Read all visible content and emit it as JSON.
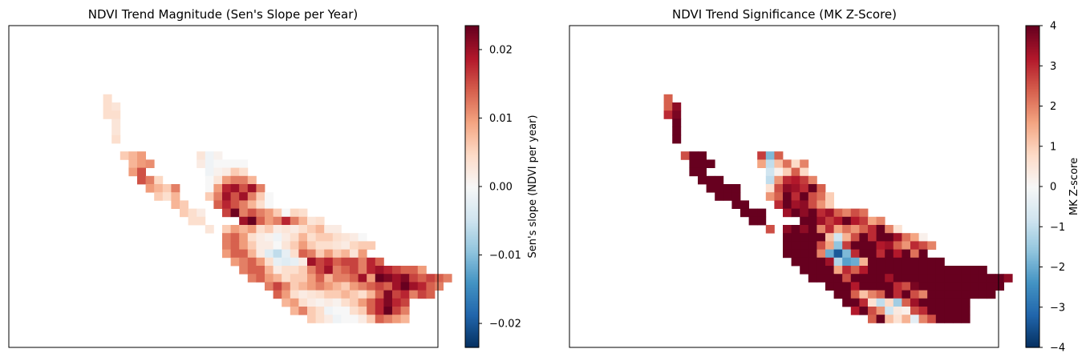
{
  "chart_data": [
    {
      "type": "heatmap",
      "title": "NDVI Trend Magnitude (Sen's Slope per Year)",
      "colorbar": {
        "label": "Sen's slope (NDVI per year)",
        "range": [
          -0.0235,
          0.0235
        ],
        "ticks": [
          -0.02,
          -0.01,
          0.0,
          0.01,
          0.02
        ],
        "tick_labels": [
          "−0.02",
          "−0.01",
          "0.00",
          "0.01",
          "0.02"
        ],
        "colormap": "RdBu_r"
      },
      "grid": false,
      "axes_ticks": false,
      "cell_values_encoding": "rows of cells; each row: [start_col, [values...]], value = Sen's slope",
      "rows": [
        [
          0,
          []
        ],
        [
          0,
          []
        ],
        [
          0,
          []
        ],
        [
          0,
          []
        ],
        [
          6,
          [
            0.004
          ]
        ],
        [
          6,
          [
            0.004,
            0.003
          ]
        ],
        [
          6,
          [
            0.004,
            0.004
          ]
        ],
        [
          7,
          [
            0.003
          ]
        ],
        [
          7,
          [
            0.003
          ]
        ],
        [
          7,
          [
            0.004
          ]
        ],
        [
          0,
          []
        ],
        [
          8,
          [
            0.006,
            0.008,
            0.01
          ],
          17,
          [
            0.003,
            -0.001,
            0.001
          ]
        ],
        [
          9,
          [
            0.008,
            0.01,
            0.011
          ],
          17,
          [
            0.002,
            -0.001,
            0.0,
            0.0,
            0.0,
            0.0
          ]
        ],
        [
          9,
          [
            0.01,
            0.015
          ],
          18,
          [
            -0.001,
            0.001,
            0.002,
            0.006,
            0.004
          ]
        ],
        [
          10,
          [
            0.015,
            0.012,
            0.005
          ],
          18,
          [
            0.0,
            0.003,
            0.01,
            0.012,
            0.012,
            0.008
          ]
        ],
        [
          11,
          [
            0.01,
            0.008,
            0.006,
            0.012
          ],
          18,
          [
            0.0,
            0.01,
            0.018,
            0.02,
            0.015,
            0.02,
            0.012
          ]
        ],
        [
          12,
          [
            0.006,
            0.004,
            0.008
          ],
          18,
          [
            0.006,
            0.012,
            0.02,
            0.015,
            0.02,
            0.012,
            0.006,
            0.0
          ]
        ],
        [
          14,
          [
            0.008,
            0.006
          ],
          19,
          [
            0.014,
            0.018,
            0.015,
            0.012,
            0.008,
            0.004,
            0.0
          ]
        ],
        [
          15,
          [
            0.006,
            0.004,
            0.002
          ],
          20,
          [
            0.016,
            0.023,
            0.012,
            0.015,
            0.012,
            0.01,
            0.006,
            0.0,
            0.005,
            0.004
          ]
        ],
        [
          16,
          [
            0.004,
            0.004
          ],
          22,
          [
            0.02,
            0.024,
            0.014,
            0.01,
            0.012,
            0.018,
            0.012,
            0.008,
            0.003,
            0.004
          ]
        ],
        [
          18,
          [
            0.003
          ],
          20,
          [
            0.006,
            0.01,
            0.008,
            0.01,
            0.004,
            0.006,
            0.002,
            0.003,
            0.002,
            0.004,
            0.006,
            0.008,
            0.002,
            0.002
          ]
        ],
        [
          20,
          [
            0.012,
            0.014,
            0.01,
            0.004,
            0.002,
            0.001,
            -0.001,
            0.002,
            0.004,
            0.008,
            0.004,
            0.006,
            0.006,
            0.004,
            0.003,
            0.002,
            0.0
          ]
        ],
        [
          20,
          [
            0.012,
            0.014,
            0.01,
            0.006,
            0.002,
            0.002,
            0.0,
            0.003,
            0.006,
            0.01,
            0.006,
            0.004,
            0.004,
            0.003,
            0.002,
            0.005,
            0.006,
            0.006
          ]
        ],
        [
          20,
          [
            0.01,
            0.014,
            0.014,
            0.008,
            0.002,
            -0.003,
            -0.006,
            -0.002,
            0.004,
            0.014,
            0.012,
            0.006,
            0.01,
            0.006,
            0.008,
            0.003,
            0.01
          ]
        ],
        [
          21,
          [
            0.01,
            0.012,
            0.014,
            0.01,
            0.004,
            -0.002,
            -0.003,
            -0.002,
            0.002,
            0.02,
            0.016,
            0.018,
            0.014,
            0.016,
            0.016,
            0.012,
            0.018,
            0.014
          ]
        ],
        [
          22,
          [
            0.012,
            0.014,
            0.014,
            0.008,
            0.002,
            0.004,
            0.004,
            0.006,
            0.012,
            0.016,
            0.02,
            0.012,
            0.014,
            0.016,
            0.012,
            0.018,
            0.02,
            0.018,
            0.016,
            0.014,
            0.014,
            0.01
          ]
        ],
        [
          23,
          [
            0.012,
            0.014,
            0.01,
            0.008,
            0.004,
            0.006,
            0.006,
            0.01,
            0.014,
            0.008,
            0.012,
            0.012,
            0.014,
            0.02,
            0.01,
            0.024,
            0.022,
            0.02,
            0.022,
            0.016,
            0.014,
            0.016,
            0.014,
            0.012
          ]
        ],
        [
          25,
          [
            0.012,
            0.016,
            0.012,
            0.006,
            0.008,
            0.01,
            0.012,
            0.01,
            0.008,
            0.006,
            0.01,
            0.012,
            0.014,
            0.016,
            0.014,
            0.02,
            0.024,
            0.02,
            0.018,
            0.014,
            0.012
          ]
        ],
        [
          26,
          [
            0.014,
            0.01,
            0.004,
            0.002,
            0.003,
            0.004,
            0.006,
            0.006,
            0.008,
            0.006,
            0.004,
            0.008,
            0.014,
            0.022,
            0.016,
            0.018,
            0.012,
            0.016,
            0.014
          ]
        ],
        [
          27,
          [
            0.008,
            0.01,
            0.004,
            0.002,
            0.001,
            0.002,
            0.001,
            0.004,
            0.006,
            0.01,
            0.014,
            0.018,
            0.022,
            0.018,
            0.016
          ]
        ],
        [
          28,
          [
            0.008,
            0.012,
            0.006,
            0.004,
            -0.001,
            0.0,
            0.0,
            0.004,
            0.006,
            0.014,
            0.018,
            0.024,
            0.016,
            0.012
          ]
        ],
        [
          30,
          [
            0.006,
            0.004,
            0.002,
            -0.001,
            0.0,
            0.0,
            0.002,
            0.006,
            0.014,
            0.012,
            0.01,
            0.008
          ]
        ]
      ]
    },
    {
      "type": "heatmap",
      "title": "NDVI Trend Significance (MK Z-Score)",
      "colorbar": {
        "label": "MK Z-score",
        "range": [
          -4,
          4
        ],
        "ticks": [
          -4,
          -3,
          -2,
          -1,
          0,
          1,
          2,
          3,
          4
        ],
        "tick_labels": [
          "−4",
          "−3",
          "−2",
          "−1",
          "0",
          "1",
          "2",
          "3",
          "4"
        ],
        "colormap": "RdBu_r"
      },
      "grid": false,
      "axes_ticks": false,
      "cell_values_encoding": "rows of cells; each row: [start_col, [values...]], value = MK Z-score",
      "rows": [
        [
          0,
          []
        ],
        [
          0,
          []
        ],
        [
          0,
          []
        ],
        [
          0,
          []
        ],
        [
          6,
          [
            2.4
          ]
        ],
        [
          6,
          [
            2.4,
            3.6
          ]
        ],
        [
          6,
          [
            3.0,
            3.8
          ]
        ],
        [
          7,
          [
            4.0
          ]
        ],
        [
          7,
          [
            4.0
          ]
        ],
        [
          7,
          [
            4.0
          ]
        ],
        [
          0,
          []
        ],
        [
          8,
          [
            2.6,
            4.0,
            4.0
          ],
          17,
          [
            2.8,
            -1.8,
            2.4
          ]
        ],
        [
          9,
          [
            4.0,
            4.0,
            4.0
          ],
          17,
          [
            1.6,
            -1.0,
            1.2,
            2.2,
            0.8,
            2.0
          ]
        ],
        [
          9,
          [
            4.0,
            4.0
          ],
          18,
          [
            -0.8,
            0.2,
            1.0,
            2.4,
            0.8
          ]
        ],
        [
          10,
          [
            4.0,
            4.0,
            4.0
          ],
          18,
          [
            -1.0,
            1.8,
            3.0,
            3.2,
            2.8,
            2.0
          ]
        ],
        [
          11,
          [
            4.0,
            4.0,
            4.0,
            4.0
          ],
          18,
          [
            0.6,
            2.6,
            3.6,
            3.4,
            3.0,
            4.0,
            2.4
          ]
        ],
        [
          12,
          [
            4.0,
            4.0,
            4.0
          ],
          18,
          [
            1.8,
            2.4,
            4.0,
            3.0,
            4.0,
            2.6,
            2.2,
            1.0
          ]
        ],
        [
          14,
          [
            4.0,
            4.0
          ],
          19,
          [
            3.0,
            4.0,
            3.4,
            3.6,
            2.6,
            1.8,
            1.0
          ]
        ],
        [
          15,
          [
            4.0,
            4.0,
            4.0
          ],
          20,
          [
            3.4,
            4.0,
            3.6,
            4.0,
            3.0,
            3.4,
            2.4,
            2.0,
            2.6,
            2.2
          ]
        ],
        [
          16,
          [
            4.0,
            4.0
          ],
          22,
          [
            4.0,
            4.0,
            3.4,
            2.8,
            3.2,
            4.0,
            3.2,
            2.8,
            1.6,
            2.0
          ]
        ],
        [
          18,
          [
            2.6
          ],
          20,
          [
            3.6,
            4.0,
            3.6,
            4.0,
            2.0,
            3.0,
            1.6,
            2.2,
            1.8,
            2.4,
            3.0,
            4.0,
            2.0,
            0.6
          ]
        ],
        [
          20,
          [
            4.0,
            4.0,
            4.0,
            4.0,
            4.0,
            1.2,
            -0.8,
            1.4,
            2.6,
            4.0,
            3.0,
            4.0,
            4.0,
            3.4,
            2.2,
            1.6,
            0.2
          ]
        ],
        [
          20,
          [
            4.0,
            4.0,
            4.0,
            4.0,
            2.6,
            1.6,
            -1.6,
            2.8,
            4.0,
            4.0,
            4.0,
            3.2,
            3.4,
            2.4,
            1.8,
            3.0,
            2.6,
            2.0
          ]
        ],
        [
          20,
          [
            4.0,
            4.0,
            4.0,
            4.0,
            2.0,
            -2.0,
            -3.4,
            -1.8,
            3.0,
            4.0,
            4.0,
            3.0,
            4.0,
            3.2,
            4.0,
            2.2,
            4.0
          ]
        ],
        [
          21,
          [
            4.0,
            4.0,
            4.0,
            4.0,
            3.4,
            -1.2,
            -2.2,
            -2.0,
            1.4,
            4.0,
            4.0,
            4.0,
            4.0,
            4.0,
            4.0,
            4.0,
            4.0,
            4.0
          ]
        ],
        [
          22,
          [
            4.0,
            4.0,
            4.0,
            4.0,
            1.6,
            3.0,
            2.4,
            3.2,
            4.0,
            4.0,
            4.0,
            4.0,
            4.0,
            4.0,
            4.0,
            4.0,
            4.0,
            4.0,
            4.0,
            4.0,
            4.0,
            4.0
          ]
        ],
        [
          23,
          [
            4.0,
            4.0,
            4.0,
            4.0,
            2.6,
            4.0,
            4.0,
            4.0,
            4.0,
            3.4,
            4.0,
            4.0,
            4.0,
            4.0,
            4.0,
            4.0,
            4.0,
            4.0,
            4.0,
            4.0,
            4.0,
            4.0,
            4.0,
            3.6
          ]
        ],
        [
          25,
          [
            4.0,
            4.0,
            4.0,
            3.2,
            4.0,
            4.0,
            4.0,
            4.0,
            3.0,
            2.6,
            3.8,
            4.0,
            4.0,
            4.0,
            4.0,
            4.0,
            4.0,
            4.0,
            4.0,
            4.0,
            4.0
          ]
        ],
        [
          26,
          [
            4.0,
            4.0,
            2.4,
            1.2,
            2.0,
            2.4,
            4.0,
            3.0,
            4.0,
            2.6,
            2.0,
            4.0,
            4.0,
            4.0,
            4.0,
            4.0,
            4.0,
            4.0,
            4.0
          ]
        ],
        [
          27,
          [
            4.0,
            4.0,
            3.0,
            0.6,
            -1.0,
            0.8,
            -1.4,
            2.4,
            3.4,
            4.0,
            4.0,
            4.0,
            4.0,
            4.0,
            4.0
          ]
        ],
        [
          28,
          [
            3.2,
            4.0,
            2.6,
            1.8,
            -0.8,
            0.4,
            0.2,
            2.6,
            3.0,
            4.0,
            4.0,
            4.0,
            4.0,
            4.0
          ]
        ],
        [
          30,
          [
            2.4,
            4.0,
            1.2,
            0.6,
            1.4,
            -0.4,
            2.0,
            2.6,
            4.0,
            4.0,
            4.0,
            4.0
          ]
        ]
      ]
    }
  ]
}
